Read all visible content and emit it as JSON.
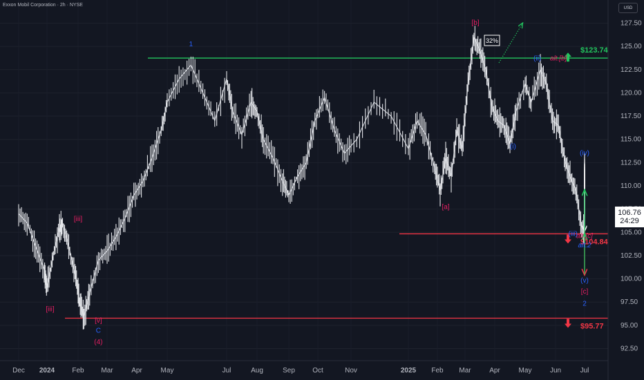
{
  "header": {
    "symbol_title": "Exxon Mobil Corporation · 2h · NYSE",
    "currency": "USD"
  },
  "price_tag": {
    "price": "106.76",
    "countdown": "24:29"
  },
  "chart_data": {
    "type": "line",
    "title": "Exxon Mobil Corporation · 2h · NYSE",
    "y_ticks": [
      "127.50",
      "125.00",
      "122.50",
      "120.00",
      "117.50",
      "115.00",
      "112.50",
      "110.00",
      "107.50",
      "105.00",
      "102.50",
      "100.00",
      "97.50",
      "95.00",
      "92.50"
    ],
    "x_ticks": [
      "Dec",
      "2024",
      "Feb",
      "Mar",
      "Apr",
      "May",
      "Jul",
      "Aug",
      "Sep",
      "Oct",
      "Nov",
      "2025",
      "Feb",
      "Mar",
      "Apr",
      "May",
      "Jun",
      "Jul"
    ],
    "ylim": [
      91.5,
      128.5
    ],
    "price_path": [
      [
        0,
        107.0
      ],
      [
        0.3,
        106.0
      ],
      [
        0.6,
        103.5
      ],
      [
        0.9,
        101.0
      ],
      [
        1.0,
        99.0
      ],
      [
        1.2,
        102.5
      ],
      [
        1.4,
        105.5
      ],
      [
        1.5,
        106.0
      ],
      [
        1.7,
        103.5
      ],
      [
        1.9,
        100.5
      ],
      [
        2.05,
        97.5
      ],
      [
        2.2,
        96.0
      ],
      [
        2.4,
        98.5
      ],
      [
        2.7,
        102.0
      ],
      [
        3.0,
        103.0
      ],
      [
        3.3,
        104.5
      ],
      [
        3.6,
        106.5
      ],
      [
        3.9,
        109.0
      ],
      [
        4.2,
        110.5
      ],
      [
        4.5,
        113.0
      ],
      [
        4.8,
        116.0
      ],
      [
        5.0,
        119.0
      ],
      [
        5.2,
        121.5
      ],
      [
        5.4,
        123.0
      ],
      [
        5.6,
        120.0
      ],
      [
        5.8,
        117.0
      ],
      [
        6.0,
        121.5
      ],
      [
        6.2,
        118.0
      ],
      [
        6.5,
        115.5
      ],
      [
        6.8,
        119.0
      ],
      [
        7.0,
        118.0
      ],
      [
        7.2,
        115.0
      ],
      [
        7.5,
        113.0
      ],
      [
        7.8,
        110.5
      ],
      [
        8.0,
        109.0
      ],
      [
        8.3,
        111.0
      ],
      [
        8.6,
        112.5
      ],
      [
        8.9,
        117.0
      ],
      [
        9.2,
        119.5
      ],
      [
        9.5,
        116.0
      ],
      [
        9.8,
        113.5
      ],
      [
        10.1,
        115.0
      ],
      [
        10.4,
        119.0
      ],
      [
        10.7,
        117.5
      ],
      [
        11.0,
        114.0
      ],
      [
        11.3,
        117.0
      ],
      [
        11.6,
        115.5
      ],
      [
        11.9,
        112.0
      ],
      [
        12.1,
        109.5
      ],
      [
        12.3,
        113.0
      ],
      [
        12.5,
        111.0
      ],
      [
        12.7,
        116.0
      ],
      [
        12.9,
        114.0
      ],
      [
        13.1,
        121.0
      ],
      [
        13.3,
        126.0
      ],
      [
        13.5,
        124.5
      ],
      [
        13.7,
        122.5
      ],
      [
        13.9,
        118.5
      ],
      [
        14.1,
        117.0
      ],
      [
        14.3,
        116.5
      ],
      [
        14.5,
        114.5
      ],
      [
        14.7,
        118.0
      ],
      [
        15.0,
        121.0
      ],
      [
        15.2,
        119.0
      ],
      [
        15.5,
        122.5
      ],
      [
        15.7,
        121.0
      ],
      [
        15.9,
        117.0
      ],
      [
        16.1,
        116.5
      ],
      [
        16.3,
        113.0
      ],
      [
        16.5,
        111.0
      ],
      [
        16.7,
        109.5
      ],
      [
        16.9,
        105.5
      ],
      [
        17.1,
        104.5
      ],
      [
        17.4,
        106.5
      ],
      [
        17.7,
        108.0
      ],
      [
        18.0,
        107.5
      ],
      [
        18.3,
        110.5
      ],
      [
        18.6,
        108.0
      ],
      [
        18.9,
        110.0
      ],
      [
        19.1,
        112.5
      ],
      [
        19.3,
        109.5
      ],
      [
        19.6,
        111.0
      ],
      [
        19.9,
        110.5
      ],
      [
        20.2,
        112.0
      ],
      [
        20.4,
        108.0
      ],
      [
        20.6,
        106.0
      ]
    ],
    "horizontal_levels": [
      {
        "label": "$123.74",
        "value": 123.74,
        "color": "#22c55e",
        "arrow": "up"
      },
      {
        "label": "$104.84",
        "value": 104.84,
        "color": "#f23645",
        "arrow": "down"
      },
      {
        "label": "$95.77",
        "value": 95.77,
        "color": "#f23645",
        "arrow": "down"
      }
    ],
    "scenario_red": [
      [
        19.5,
        112.4
      ],
      [
        20.7,
        105.2
      ],
      [
        21.6,
        100.5
      ]
    ],
    "scenario_green": [
      [
        21.6,
        100.5
      ],
      [
        22.8,
        104.8
      ],
      [
        23.7,
        109.5
      ]
    ],
    "probability_label": "32%",
    "wave_labels": [
      {
        "text": "1",
        "x": 5.4,
        "y": 125.0,
        "color": "#2962ff"
      },
      {
        "text": "[b]",
        "x": 13.35,
        "y": 127.3,
        "color": "#e91e63"
      },
      {
        "text": "(ii)",
        "x": 15.4,
        "y": 123.5,
        "color": "#2962ff"
      },
      {
        "text": "alt.[b]",
        "x": 16.1,
        "y": 123.5,
        "color": "#e91e63",
        "italic": true
      },
      {
        "text": "(i)",
        "x": 14.6,
        "y": 114.0,
        "color": "#2962ff"
      },
      {
        "text": "(iv)",
        "x": 18.6,
        "y": 113.3,
        "color": "#2962ff"
      },
      {
        "text": "[a]",
        "x": 12.3,
        "y": 107.5,
        "color": "#e91e63"
      },
      {
        "text": "(iii)",
        "x": 16.6,
        "y": 104.6,
        "color": "#2962ff"
      },
      {
        "text": "alt.[c]",
        "x": 17.4,
        "y": 104.4,
        "color": "#e91e63",
        "italic": true
      },
      {
        "text": "alt.2",
        "x": 17.4,
        "y": 103.4,
        "color": "#2962ff",
        "italic": true
      },
      {
        "text": "(v)",
        "x": 20.9,
        "y": 99.6,
        "color": "#2962ff"
      },
      {
        "text": "[c]",
        "x": 20.9,
        "y": 98.4,
        "color": "#e91e63"
      },
      {
        "text": "2",
        "x": 20.9,
        "y": 97.1,
        "color": "#2962ff"
      },
      {
        "text": "[iii]",
        "x": 2.0,
        "y": 106.2,
        "color": "#e91e63"
      },
      {
        "text": "[iii]",
        "x": 1.1,
        "y": 96.5,
        "color": "#e91e63"
      },
      {
        "text": "[v]",
        "x": 2.7,
        "y": 95.3,
        "color": "#e91e63"
      },
      {
        "text": "C",
        "x": 2.7,
        "y": 94.2,
        "color": "#2962ff"
      },
      {
        "text": "(4)",
        "x": 2.7,
        "y": 93.0,
        "color": "#e91e63"
      }
    ]
  }
}
